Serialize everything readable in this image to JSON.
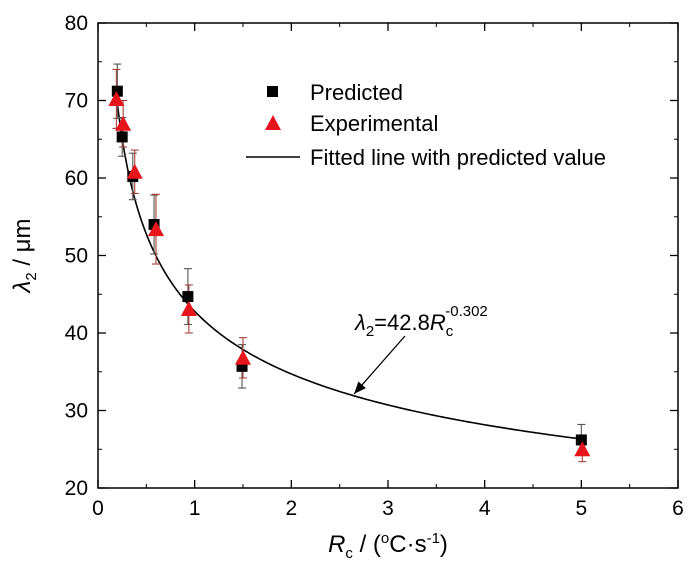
{
  "chart_data": {
    "type": "scatter",
    "xlabel": {
      "symbol": "R",
      "symbol_sub": "c",
      "unit_prefix": " / (",
      "unit_deg": "o",
      "unit_mid": "C·s",
      "unit_exp": "-1",
      "unit_suffix": ")"
    },
    "ylabel": {
      "symbol": "λ",
      "symbol_sub": "2",
      "unit": " / μm"
    },
    "xlim": [
      0,
      6
    ],
    "ylim": [
      20,
      80
    ],
    "xticks": [
      0,
      1,
      2,
      3,
      4,
      5,
      6
    ],
    "yticks": [
      20,
      30,
      40,
      50,
      60,
      70,
      80
    ],
    "legend_position": "top-right",
    "series": [
      {
        "name": "Predicted",
        "marker": "square",
        "color": "#000000",
        "points": [
          {
            "x": 0.2,
            "y": 71.2,
            "err": 3.5
          },
          {
            "x": 0.25,
            "y": 65.3,
            "err": 2.5
          },
          {
            "x": 0.36,
            "y": 60.2,
            "err": 3.0
          },
          {
            "x": 0.58,
            "y": 54.0,
            "err": 3.8
          },
          {
            "x": 0.93,
            "y": 44.7,
            "err": 3.6
          },
          {
            "x": 1.49,
            "y": 35.7,
            "err": 2.8
          },
          {
            "x": 5.0,
            "y": 26.2,
            "err": 2.0
          }
        ]
      },
      {
        "name": "Experimental",
        "marker": "triangle",
        "color": "#e8141c",
        "errorbar_color": "#a8403a",
        "points": [
          {
            "x": 0.19,
            "y": 70.2,
            "err": 3.8
          },
          {
            "x": 0.26,
            "y": 67.0,
            "err": 3.0
          },
          {
            "x": 0.38,
            "y": 60.8,
            "err": 2.8
          },
          {
            "x": 0.6,
            "y": 53.4,
            "err": 4.5
          },
          {
            "x": 0.94,
            "y": 43.1,
            "err": 3.1
          },
          {
            "x": 1.5,
            "y": 36.8,
            "err": 2.6
          },
          {
            "x": 5.01,
            "y": 25.0,
            "err": 1.6
          }
        ]
      },
      {
        "name": "Fitted line with predicted value",
        "type": "line",
        "color": "#000000",
        "equation": {
          "a": 42.8,
          "b": -0.302
        },
        "x_range": [
          0.2,
          5.0
        ]
      }
    ],
    "annotation": {
      "lhs": "λ",
      "lhs_sub": "2",
      "eq": "=42.8",
      "var": "R",
      "var_sub": "c",
      "exp": "-0.302",
      "arrow_to_x": 2.65
    }
  }
}
